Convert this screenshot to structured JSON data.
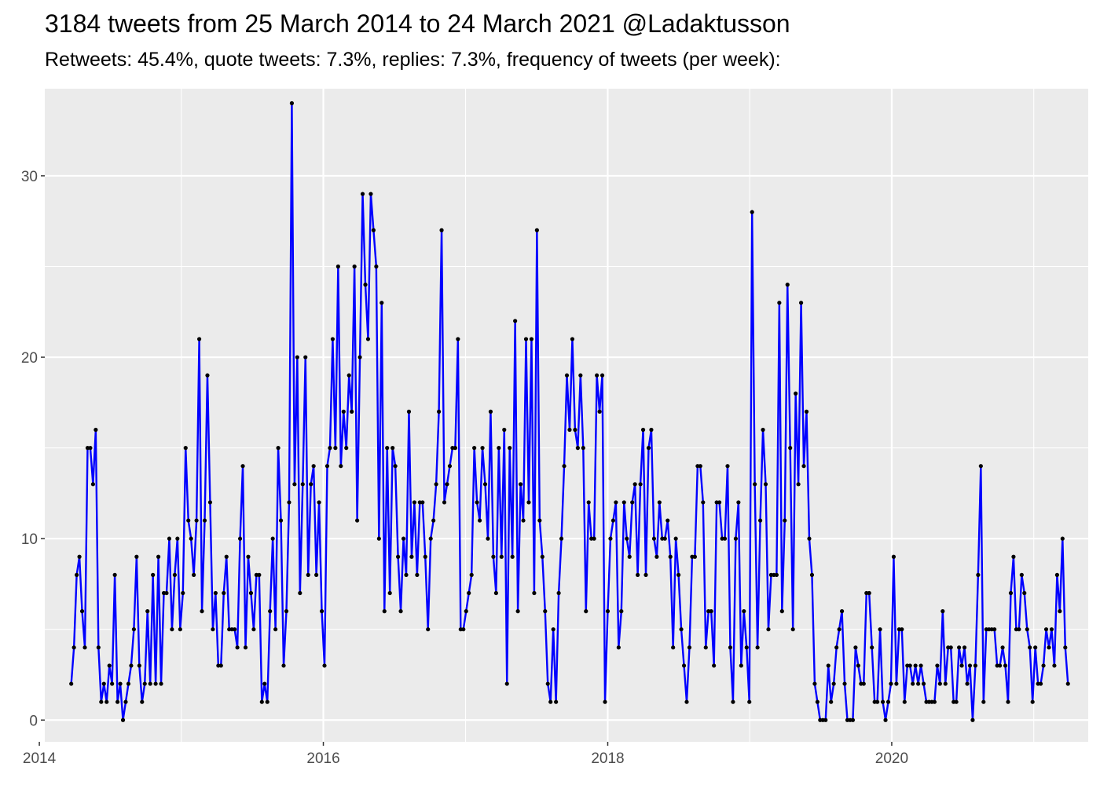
{
  "chart_data": {
    "type": "line",
    "title": "3184 tweets from 25 March 2014 to 24 March 2021 @Ladaktusson",
    "subtitle": "Retweets: 45.4%, quote tweets: 7.3%, replies: 7.3%, frequency of tweets (per week):",
    "xlabel": "",
    "ylabel": "",
    "x_unit": "date",
    "x_range": [
      "2014-01-15",
      "2021-05-20"
    ],
    "ylim": [
      -1.2,
      34.8
    ],
    "x_ticks": [
      {
        "date": "2014-01-01",
        "label": "2014"
      },
      {
        "date": "2016-01-01",
        "label": "2016"
      },
      {
        "date": "2018-01-01",
        "label": "2018"
      },
      {
        "date": "2020-01-01",
        "label": "2020"
      }
    ],
    "y_ticks": [
      0,
      10,
      20,
      30
    ],
    "grid": true,
    "legend": "none",
    "colors": {
      "line": "#0000ff",
      "points": "#000000",
      "panel_background": "#ebebeb",
      "grid": "#ffffff"
    },
    "series": [
      {
        "start_date": "2014-03-24",
        "interval_days": 7,
        "values": [
          2,
          4,
          8,
          9,
          6,
          4,
          15,
          15,
          13,
          16,
          4,
          1,
          2,
          1,
          3,
          2,
          8,
          1,
          2,
          0,
          1,
          2,
          3,
          5,
          9,
          3,
          1,
          2,
          6,
          2,
          8,
          2,
          9,
          2,
          7,
          7,
          10,
          5,
          8,
          10,
          5,
          7,
          15,
          11,
          10,
          8,
          11,
          21,
          6,
          11,
          19,
          12,
          5,
          7,
          3,
          3,
          7,
          9,
          5,
          5,
          5,
          4,
          10,
          14,
          4,
          9,
          7,
          5,
          8,
          8,
          1,
          2,
          1,
          6,
          10,
          5,
          15,
          11,
          3,
          6,
          12,
          34,
          13,
          20,
          7,
          13,
          20,
          8,
          13,
          14,
          8,
          12,
          6,
          3,
          14,
          15,
          21,
          15,
          25,
          14,
          17,
          15,
          19,
          17,
          25,
          11,
          20,
          29,
          24,
          21,
          29,
          27,
          25,
          10,
          23,
          6,
          15,
          7,
          15,
          14,
          9,
          6,
          10,
          8,
          17,
          9,
          12,
          8,
          12,
          12,
          9,
          5,
          10,
          11,
          13,
          17,
          27,
          12,
          13,
          14,
          15,
          15,
          21,
          5,
          5,
          6,
          7,
          8,
          15,
          12,
          11,
          15,
          13,
          10,
          17,
          9,
          7,
          15,
          9,
          16,
          2,
          15,
          9,
          22,
          6,
          13,
          11,
          21,
          12,
          21,
          7,
          27,
          11,
          9,
          6,
          2,
          1,
          5,
          1,
          7,
          10,
          14,
          19,
          16,
          21,
          16,
          15,
          19,
          15,
          6,
          12,
          10,
          10,
          19,
          17,
          19,
          1,
          6,
          10,
          11,
          12,
          4,
          6,
          12,
          10,
          9,
          12,
          13,
          8,
          13,
          16,
          8,
          15,
          16,
          10,
          9,
          12,
          10,
          10,
          11,
          9,
          4,
          10,
          8,
          5,
          3,
          1,
          4,
          9,
          9,
          14,
          14,
          12,
          4,
          6,
          6,
          3,
          12,
          12,
          10,
          10,
          14,
          4,
          1,
          10,
          12,
          3,
          6,
          4,
          1,
          28,
          13,
          4,
          11,
          16,
          13,
          5,
          8,
          8,
          8,
          23,
          6,
          11,
          24,
          15,
          5,
          18,
          13,
          23,
          14,
          17,
          10,
          8,
          2,
          1,
          0,
          0,
          0,
          3,
          1,
          2,
          4,
          5,
          6,
          2,
          0,
          0,
          0,
          4,
          3,
          2,
          2,
          7,
          7,
          4,
          1,
          1,
          5,
          1,
          0,
          1,
          2,
          9,
          2,
          5,
          5,
          1,
          3,
          3,
          2,
          3,
          2,
          3,
          2,
          1,
          1,
          1,
          1,
          3,
          2,
          6,
          2,
          4,
          4,
          1,
          1,
          4,
          3,
          4,
          2,
          3,
          0,
          3,
          8,
          14,
          1,
          5,
          5,
          5,
          5,
          3,
          3,
          4,
          3,
          1,
          7,
          9,
          5,
          5,
          8,
          7,
          5,
          4,
          1,
          4,
          2,
          2,
          3,
          5,
          4,
          5,
          3,
          8,
          6,
          10,
          4,
          2
        ]
      }
    ]
  }
}
